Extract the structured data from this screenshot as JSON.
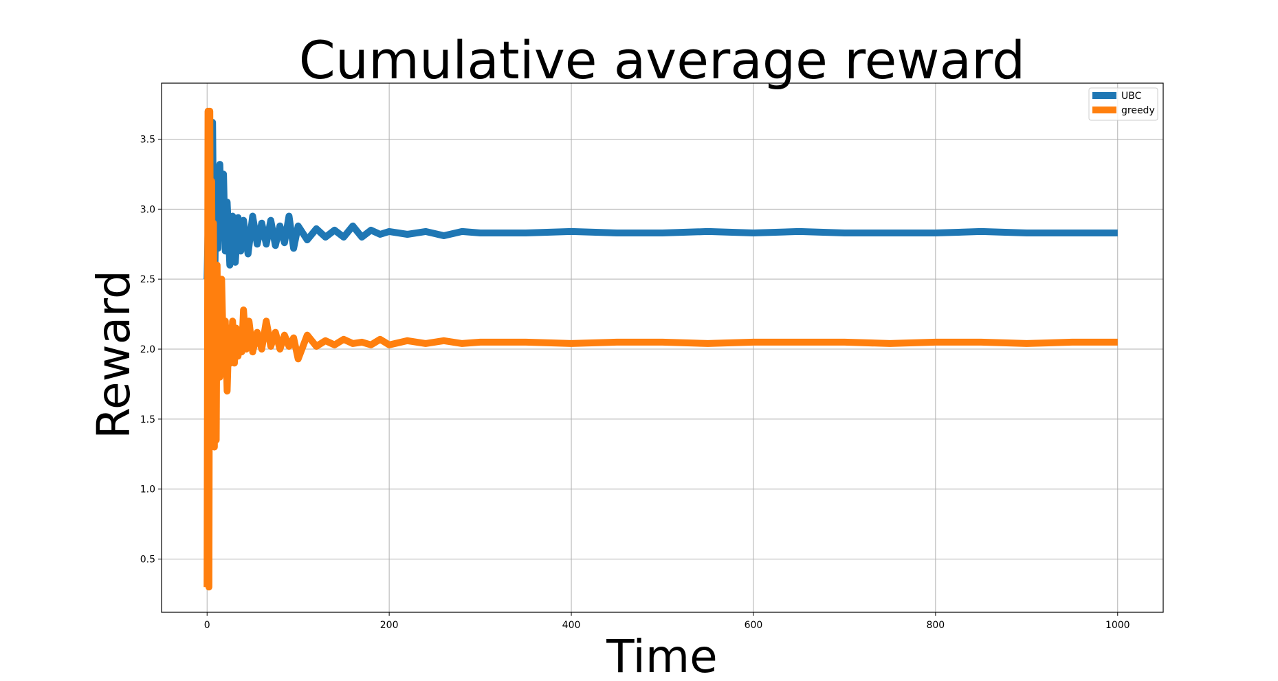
{
  "chart_data": {
    "type": "line",
    "title": "Cumulative average reward",
    "xlabel": "Time",
    "ylabel": "Reward",
    "xlim": [
      -50,
      1050
    ],
    "ylim": [
      0.12,
      3.9
    ],
    "xticks": [
      0,
      200,
      400,
      600,
      800,
      1000
    ],
    "yticks": [
      0.5,
      1.0,
      1.5,
      2.0,
      2.5,
      3.0,
      3.5
    ],
    "xtick_labels": [
      "0",
      "200",
      "400",
      "600",
      "800",
      "1000"
    ],
    "ytick_labels": [
      "0.5",
      "1.0",
      "1.5",
      "2.0",
      "2.5",
      "3.0",
      "3.5"
    ],
    "grid": true,
    "legend_position": "top-right",
    "series": [
      {
        "name": "UBC",
        "color": "#1f77b4",
        "x": [
          0,
          2,
          4,
          6,
          8,
          10,
          12,
          14,
          16,
          18,
          20,
          22,
          25,
          28,
          31,
          34,
          37,
          40,
          45,
          50,
          55,
          60,
          65,
          70,
          75,
          80,
          85,
          90,
          95,
          100,
          110,
          120,
          130,
          140,
          150,
          160,
          170,
          180,
          190,
          200,
          220,
          240,
          260,
          280,
          300,
          350,
          400,
          450,
          500,
          550,
          600,
          650,
          700,
          750,
          800,
          850,
          900,
          950,
          1000
        ],
        "y": [
          2.5,
          3.15,
          2.55,
          3.62,
          2.25,
          3.3,
          2.72,
          3.32,
          2.85,
          3.25,
          2.7,
          3.05,
          2.6,
          2.95,
          2.62,
          2.94,
          2.7,
          2.92,
          2.68,
          2.95,
          2.75,
          2.9,
          2.75,
          2.92,
          2.74,
          2.88,
          2.76,
          2.95,
          2.72,
          2.88,
          2.78,
          2.86,
          2.8,
          2.85,
          2.8,
          2.88,
          2.8,
          2.85,
          2.82,
          2.84,
          2.82,
          2.84,
          2.81,
          2.84,
          2.83,
          2.83,
          2.84,
          2.83,
          2.83,
          2.84,
          2.83,
          2.84,
          2.83,
          2.83,
          2.83,
          2.84,
          2.83,
          2.83,
          2.83
        ]
      },
      {
        "name": "greedy",
        "color": "#ff7f0e",
        "x": [
          0,
          1,
          2,
          3,
          4,
          5,
          6,
          7,
          8,
          9,
          10,
          11,
          12,
          13,
          14,
          15,
          16,
          18,
          20,
          22,
          24,
          26,
          28,
          30,
          32,
          34,
          36,
          38,
          40,
          43,
          46,
          50,
          55,
          60,
          65,
          70,
          75,
          80,
          85,
          90,
          95,
          100,
          110,
          120,
          130,
          140,
          150,
          160,
          170,
          180,
          190,
          200,
          220,
          240,
          260,
          280,
          300,
          350,
          400,
          450,
          500,
          550,
          600,
          650,
          700,
          750,
          800,
          850,
          900,
          950,
          1000
        ],
        "y": [
          0.3,
          3.7,
          0.3,
          3.7,
          1.8,
          3.2,
          1.6,
          2.9,
          1.3,
          2.6,
          1.35,
          2.6,
          1.9,
          2.4,
          1.8,
          2.1,
          2.5,
          1.9,
          2.2,
          1.7,
          2.15,
          1.9,
          2.2,
          1.9,
          2.15,
          1.95,
          2.1,
          1.98,
          2.28,
          2.0,
          2.2,
          1.98,
          2.12,
          2.0,
          2.2,
          2.02,
          2.12,
          2.0,
          2.1,
          2.02,
          2.08,
          1.93,
          2.1,
          2.02,
          2.06,
          2.03,
          2.07,
          2.04,
          2.05,
          2.03,
          2.07,
          2.03,
          2.06,
          2.04,
          2.06,
          2.04,
          2.05,
          2.05,
          2.04,
          2.05,
          2.05,
          2.04,
          2.05,
          2.05,
          2.05,
          2.04,
          2.05,
          2.05,
          2.04,
          2.05,
          2.05
        ]
      }
    ]
  }
}
